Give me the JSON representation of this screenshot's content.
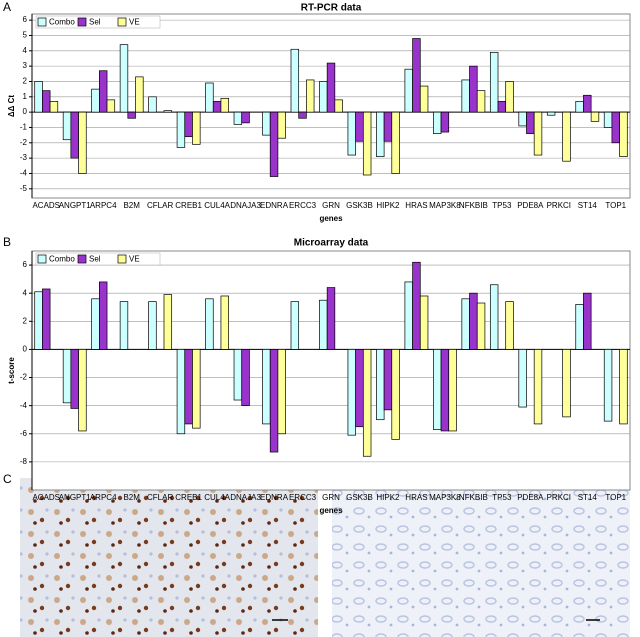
{
  "chart_data": [
    {
      "type": "bar",
      "panel_label": "A",
      "title": "RT-PCR data",
      "x_label": "genes",
      "y_label": "ΔΔ Ct",
      "categories": [
        "ACADS",
        "ANGPT1",
        "ARPC4",
        "B2M",
        "CFLAR",
        "CREB1",
        "CUL4A",
        "DNAJA3",
        "EDNRA",
        "ERCC3",
        "GRN",
        "GSK3B",
        "HIPK2",
        "HRAS",
        "MAP3K8",
        "NFKBIB",
        "TP53",
        "PDE8A",
        "PRKCI",
        "ST14",
        "TOP1"
      ],
      "series": [
        {
          "name": "Combo",
          "color": "#ccffff",
          "values": [
            2.0,
            -1.8,
            1.5,
            4.4,
            1.0,
            -2.3,
            1.9,
            -0.8,
            -1.5,
            4.1,
            2.0,
            -2.8,
            -2.9,
            2.8,
            -1.4,
            2.1,
            3.9,
            -0.9,
            -0.2,
            0.7,
            -1.0
          ]
        },
        {
          "name": "Sel",
          "color": "#9933cc",
          "values": [
            1.4,
            -3.0,
            2.7,
            -0.4,
            null,
            -1.6,
            0.7,
            -0.7,
            -4.2,
            -0.4,
            3.2,
            -1.9,
            -1.9,
            4.8,
            -1.3,
            3.0,
            0.7,
            -1.4,
            null,
            1.1,
            -2.0
          ]
        },
        {
          "name": "VE",
          "color": "#ffff99",
          "values": [
            0.7,
            -4.0,
            0.8,
            2.3,
            0.1,
            -2.1,
            0.9,
            null,
            -1.7,
            2.1,
            0.8,
            -4.1,
            -4.0,
            1.7,
            null,
            1.4,
            2.0,
            -2.8,
            -3.2,
            -0.6,
            -2.9
          ]
        }
      ],
      "ylim": [
        -5.6,
        6.4
      ],
      "yticks": [
        -5,
        -4,
        -3,
        -2,
        -1,
        0,
        1,
        2,
        3,
        4,
        5,
        6
      ],
      "grid": true,
      "legend": "top-left"
    },
    {
      "type": "bar",
      "panel_label": "B",
      "title": "Microarray data",
      "x_label": "genes",
      "y_label": "t-score",
      "categories": [
        "ACADS",
        "ANGPT1",
        "ARPC4",
        "B2M",
        "CFLAR",
        "CREB1",
        "CUL4A",
        "DNAJA3",
        "EDNRA",
        "ERCC3",
        "GRN",
        "GSK3B",
        "HIPK2",
        "HRAS",
        "MAP3K8",
        "NFKBIB",
        "TP53",
        "PDE8A",
        "PRKCI",
        "ST14",
        "TOP1"
      ],
      "series": [
        {
          "name": "Combo",
          "color": "#ccffff",
          "values": [
            4.1,
            -3.8,
            3.6,
            3.4,
            3.4,
            -6.0,
            3.6,
            -3.6,
            -5.3,
            3.4,
            3.5,
            -6.1,
            -5.0,
            4.8,
            -5.7,
            3.6,
            4.6,
            -4.1,
            null,
            3.2,
            -5.1
          ]
        },
        {
          "name": "Sel",
          "color": "#9933cc",
          "values": [
            4.3,
            -4.2,
            4.8,
            null,
            null,
            -5.3,
            null,
            -4.0,
            -7.3,
            null,
            4.4,
            -5.5,
            -4.3,
            6.2,
            -5.8,
            4.0,
            null,
            null,
            null,
            4.0,
            null
          ]
        },
        {
          "name": "VE",
          "color": "#ffff99",
          "values": [
            null,
            -5.8,
            null,
            null,
            3.9,
            -5.6,
            3.8,
            null,
            -6.0,
            null,
            null,
            -7.6,
            -6.4,
            3.8,
            -5.8,
            3.3,
            3.4,
            -5.3,
            -4.8,
            null,
            -5.3
          ]
        }
      ],
      "ylim": [
        -10,
        7
      ],
      "yticks": [
        -8,
        -6,
        -4,
        -2,
        0,
        2,
        4,
        6
      ],
      "grid": true,
      "legend": "top-left"
    }
  ],
  "panel_c": {
    "label": "C"
  }
}
